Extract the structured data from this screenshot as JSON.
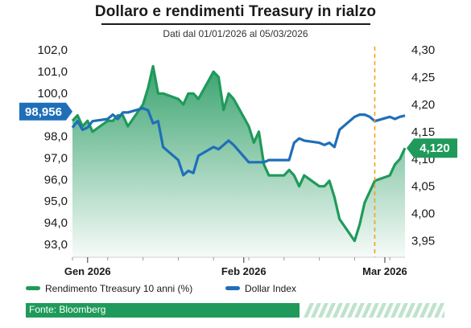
{
  "title": "Dollaro e rendimenti Treasury in rialzo",
  "subtitle": "Dati dal 01/01/2026 al 05/03/2026",
  "colors": {
    "treasury": "#1f9a5a",
    "treasury_fill": "#3daf78",
    "dollar": "#1f6fb8",
    "marker": "#f2a31b",
    "source_bar": "#1f9a5a"
  },
  "legend": {
    "treasury": "Rendimento Ttreasury 10 anni (%)",
    "dollar": "Dollar Index"
  },
  "source": "Fonte: Bloomberg",
  "chart_data": {
    "type": "line",
    "x_dates": [
      "2025-12-29",
      "2025-12-30",
      "2025-12-31",
      "2026-01-01",
      "2026-01-02",
      "2026-01-05",
      "2026-01-06",
      "2026-01-07",
      "2026-01-08",
      "2026-01-09",
      "2026-01-12",
      "2026-01-13",
      "2026-01-14",
      "2026-01-15",
      "2026-01-16",
      "2026-01-19",
      "2026-01-20",
      "2026-01-21",
      "2026-01-22",
      "2026-01-23",
      "2026-01-26",
      "2026-01-27",
      "2026-01-28",
      "2026-01-29",
      "2026-01-30",
      "2026-02-02",
      "2026-02-03",
      "2026-02-04",
      "2026-02-05",
      "2026-02-06",
      "2026-02-09",
      "2026-02-10",
      "2026-02-11",
      "2026-02-12",
      "2026-02-13",
      "2026-02-16",
      "2026-02-17",
      "2026-02-18",
      "2026-02-19",
      "2026-02-20",
      "2026-02-23",
      "2026-02-24",
      "2026-02-25",
      "2026-02-26",
      "2026-02-27",
      "2026-03-02",
      "2026-03-03",
      "2026-03-04",
      "2026-03-05"
    ],
    "x_ticks": [
      {
        "label": "Gen 2026",
        "date": "2026-01-01"
      },
      {
        "label": "Feb 2026",
        "date": "2026-02-01"
      },
      {
        "label": "Mar 2026",
        "date": "2026-03-01"
      }
    ],
    "marker_date": "2026-02-27",
    "series": [
      {
        "name": "Rendimento Ttreasury 10 anni (%)",
        "axis": "right",
        "fill": true,
        "values": [
          4.17,
          4.18,
          4.16,
          4.17,
          4.15,
          4.17,
          4.17,
          4.18,
          4.18,
          4.16,
          4.2,
          4.23,
          4.27,
          4.22,
          4.22,
          4.21,
          4.2,
          4.22,
          4.22,
          4.21,
          4.26,
          4.25,
          4.19,
          4.22,
          4.21,
          4.16,
          4.13,
          4.15,
          4.09,
          4.07,
          4.07,
          4.08,
          4.07,
          4.05,
          4.07,
          4.05,
          4.05,
          4.06,
          4.03,
          3.99,
          3.95,
          3.98,
          4.02,
          4.04,
          4.06,
          4.07,
          4.09,
          4.1,
          4.12
        ]
      },
      {
        "name": "Dollar Index",
        "axis": "left",
        "values": [
          98.4,
          98.7,
          98.3,
          98.4,
          98.7,
          98.8,
          99.0,
          98.8,
          99.1,
          99.1,
          99.3,
          99.2,
          98.6,
          98.7,
          97.5,
          96.9,
          96.2,
          96.4,
          96.3,
          97.1,
          97.5,
          97.4,
          97.6,
          97.8,
          97.6,
          96.8,
          96.8,
          96.8,
          96.8,
          96.9,
          96.9,
          96.9,
          97.7,
          97.9,
          97.8,
          97.7,
          97.6,
          97.7,
          97.5,
          98.3,
          98.9,
          99.0,
          99.0,
          98.9,
          98.7,
          98.9,
          98.8,
          98.9,
          98.956
        ]
      }
    ],
    "ylim_left": [
      92.4,
      102.0
    ],
    "yticks_left": [
      "93,0",
      "94,0",
      "95,0",
      "96,0",
      "97,0",
      "98,0",
      "99,0",
      "100,0",
      "101,0",
      "102,0"
    ],
    "ylim_right": [
      3.92,
      4.3
    ],
    "yticks_right": [
      "3,95",
      "4,00",
      "4,05",
      "4,10",
      "4,15",
      "4,20",
      "4,25",
      "4,30"
    ],
    "callouts": {
      "dollar_last": "98,956",
      "treasury_last": "4,120"
    },
    "grid": false,
    "legend_position": "bottom-left"
  }
}
